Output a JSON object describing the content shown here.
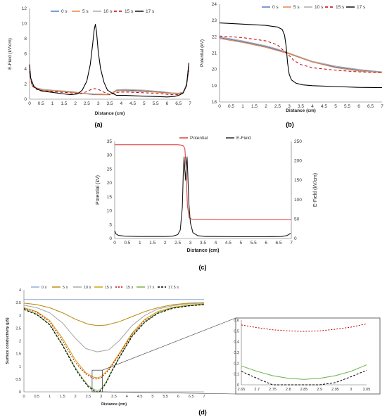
{
  "panels": {
    "a": "(a)",
    "b": "(b)",
    "c": "(c)",
    "d": "(d)"
  },
  "chart_data": [
    {
      "id": "a",
      "type": "line",
      "xlabel": "Distance (cm)",
      "ylabel": "E-Field (kV/cm)",
      "xlim": [
        0,
        7
      ],
      "ylim": [
        0,
        12
      ],
      "xticks": [
        "0",
        "0.5",
        "1",
        "1.5",
        "2",
        "2.5",
        "3",
        "3.5",
        "4",
        "4.5",
        "5",
        "5.5",
        "6",
        "6.5",
        "7"
      ],
      "yticks": [
        "0",
        "2",
        "4",
        "6",
        "8",
        "10",
        "12"
      ],
      "legend_position": "top",
      "series": [
        {
          "name": "0 s",
          "color": "#4472C4",
          "dash": "",
          "x": [
            0,
            0.1,
            0.3,
            0.6,
            1,
            1.5,
            1.9,
            2.2,
            2.5,
            2.8,
            3.1,
            3.5,
            3.8,
            4.2,
            4.6,
            5,
            5.4,
            5.8,
            6.2,
            6.5,
            6.7,
            6.85,
            6.95
          ],
          "y": [
            3.6,
            1.9,
            1.4,
            1.2,
            1.1,
            1,
            0.9,
            0.8,
            0.7,
            0.6,
            0.6,
            0.6,
            1.2,
            1.2,
            1.15,
            1.1,
            1.0,
            0.9,
            0.8,
            0.75,
            0.9,
            1.8,
            3.8
          ]
        },
        {
          "name": "5 s",
          "color": "#ED7D31",
          "dash": "",
          "x": [
            0,
            0.1,
            0.3,
            0.6,
            1,
            1.5,
            1.9,
            2.2,
            2.5,
            2.8,
            3.1,
            3.5,
            3.8,
            4.2,
            4.6,
            5,
            5.4,
            5.8,
            6.2,
            6.5,
            6.7,
            6.85,
            6.95
          ],
          "y": [
            3.7,
            1.9,
            1.4,
            1.2,
            1.1,
            1,
            0.9,
            0.8,
            0.7,
            0.65,
            0.6,
            0.6,
            1.1,
            1.1,
            1.05,
            1.0,
            0.95,
            0.85,
            0.75,
            0.7,
            0.85,
            1.9,
            4.2
          ]
        },
        {
          "name": "10 s",
          "color": "#A5A5A5",
          "dash": "",
          "x": [
            0,
            0.1,
            0.3,
            0.6,
            1,
            1.5,
            1.9,
            2.2,
            2.5,
            2.8,
            3.1,
            3.5,
            3.8,
            4.2,
            4.6,
            5,
            5.4,
            5.8,
            6.2,
            6.5,
            6.7,
            6.85,
            6.95
          ],
          "y": [
            3.8,
            2.0,
            1.5,
            1.3,
            1.2,
            1.1,
            1.0,
            0.85,
            0.75,
            0.7,
            0.7,
            0.65,
            1.25,
            1.3,
            1.25,
            1.2,
            1.1,
            1.0,
            0.85,
            0.8,
            0.95,
            2.0,
            4.6
          ]
        },
        {
          "name": "15 s",
          "color": "#C00000",
          "dash": "4,3",
          "x": [
            0,
            0.1,
            0.3,
            0.6,
            1,
            1.5,
            1.9,
            2.2,
            2.5,
            2.7,
            2.85,
            3.0,
            3.2,
            3.5,
            3.8,
            4.2,
            4.6,
            5,
            5.4,
            5.8,
            6.2,
            6.5,
            6.7,
            6.85,
            6.95
          ],
          "y": [
            3.7,
            1.8,
            1.3,
            1.1,
            1.0,
            0.9,
            0.8,
            0.7,
            1.0,
            1.3,
            1.4,
            1.3,
            1.0,
            0.6,
            0.9,
            0.95,
            0.9,
            0.85,
            0.8,
            0.7,
            0.6,
            0.6,
            0.8,
            1.9,
            4.3
          ]
        },
        {
          "name": "17 s",
          "color": "#000000",
          "dash": "",
          "x": [
            0,
            0.05,
            0.2,
            0.5,
            1,
            1.5,
            1.8,
            2.1,
            2.3,
            2.5,
            2.65,
            2.75,
            2.82,
            2.87,
            2.92,
            3.0,
            3.1,
            3.25,
            3.4,
            3.6,
            3.8,
            4.2,
            4.6,
            5,
            5.5,
            6,
            6.3,
            6.5,
            6.7,
            6.85,
            6.95
          ],
          "y": [
            4.6,
            2.8,
            1.6,
            1.1,
            0.9,
            0.7,
            0.6,
            0.7,
            1.2,
            2.4,
            4.6,
            7.2,
            9.2,
            9.9,
            9.0,
            6.2,
            4.0,
            2.2,
            1.2,
            0.8,
            0.5,
            0.5,
            0.45,
            0.4,
            0.35,
            0.3,
            0.35,
            0.5,
            0.8,
            1.8,
            4.8
          ]
        }
      ]
    },
    {
      "id": "b",
      "type": "line",
      "xlabel": "Distance (cm)",
      "ylabel": "Potential (kV)",
      "xlim": [
        0,
        7
      ],
      "ylim": [
        18,
        24
      ],
      "xticks": [
        "0",
        "0.5",
        "1",
        "1.5",
        "2",
        "2.5",
        "3",
        "3.5",
        "4",
        "4.5",
        "5",
        "5.5",
        "6",
        "6.5",
        "7"
      ],
      "yticks": [
        "18",
        "19",
        "20",
        "21",
        "22",
        "23",
        "24"
      ],
      "legend_position": "top",
      "series": [
        {
          "name": "0 s",
          "color": "#4472C4",
          "dash": "",
          "x": [
            0,
            1,
            2,
            2.5,
            3,
            3.5,
            4,
            5,
            6,
            7
          ],
          "y": [
            21.95,
            21.7,
            21.4,
            21.2,
            21.0,
            20.7,
            20.45,
            20.15,
            19.95,
            19.85
          ]
        },
        {
          "name": "5 s",
          "color": "#ED7D31",
          "dash": "",
          "x": [
            0,
            1,
            2,
            2.5,
            3,
            3.5,
            4,
            5,
            6,
            7
          ],
          "y": [
            21.9,
            21.65,
            21.35,
            21.15,
            20.95,
            20.7,
            20.45,
            20.1,
            19.9,
            19.8
          ]
        },
        {
          "name": "10 s",
          "color": "#A5A5A5",
          "dash": "",
          "x": [
            0,
            1,
            2,
            2.5,
            3,
            3.5,
            4,
            5,
            6,
            7
          ],
          "y": [
            22.0,
            21.75,
            21.45,
            21.25,
            21.0,
            20.75,
            20.5,
            20.2,
            20.0,
            19.85
          ]
        },
        {
          "name": "15 s",
          "color": "#C00000",
          "dash": "4,3",
          "x": [
            0,
            1,
            2,
            2.5,
            2.8,
            3,
            3.2,
            3.5,
            4,
            5,
            6,
            7
          ],
          "y": [
            22.05,
            21.95,
            21.75,
            21.5,
            21.1,
            20.85,
            20.55,
            20.3,
            20.1,
            19.95,
            19.85,
            19.8
          ]
        },
        {
          "name": "17 s",
          "color": "#000000",
          "dash": "",
          "x": [
            0,
            1,
            2,
            2.5,
            2.7,
            2.8,
            2.87,
            2.93,
            3.0,
            3.1,
            3.3,
            3.6,
            4,
            5,
            6,
            7
          ],
          "y": [
            22.85,
            22.78,
            22.7,
            22.6,
            22.45,
            22.1,
            21.4,
            20.4,
            19.7,
            19.35,
            19.15,
            19.05,
            19.0,
            18.95,
            18.9,
            18.88
          ]
        }
      ]
    },
    {
      "id": "c",
      "type": "line",
      "xlabel": "Distance (cm)",
      "ylabel": "Potential (kV)",
      "ylabel2": "E-Field (kV/cm)",
      "xlim": [
        0,
        7
      ],
      "ylim": [
        0,
        35
      ],
      "ylim2": [
        0,
        250
      ],
      "xticks": [
        "0",
        "0.5",
        "1",
        "1.5",
        "2",
        "2.5",
        "3",
        "3.5",
        "4",
        "4.5",
        "5",
        "5.5",
        "6",
        "6.5",
        "7"
      ],
      "yticks": [
        "0",
        "5",
        "10",
        "15",
        "20",
        "25",
        "30",
        "35"
      ],
      "yticks2": [
        "0",
        "50",
        "100",
        "150",
        "200",
        "250"
      ],
      "legend_position": "top",
      "series": [
        {
          "name": "Potential",
          "color": "#E03030",
          "axis": "left",
          "x": [
            0,
            1,
            2,
            2.5,
            2.7,
            2.78,
            2.83,
            2.88,
            2.95,
            3.05,
            3.5,
            4,
            5,
            6,
            7
          ],
          "y": [
            33.8,
            33.8,
            33.8,
            33.8,
            33.6,
            32.5,
            25,
            12,
            7.5,
            7.0,
            6.9,
            6.85,
            6.8,
            6.8,
            6.8
          ]
        },
        {
          "name": "E-Field",
          "color": "#1a1a1a",
          "axis": "right",
          "x": [
            0,
            0.05,
            0.15,
            0.4,
            1,
            1.5,
            2,
            2.3,
            2.5,
            2.6,
            2.68,
            2.72,
            2.75,
            2.78,
            2.81,
            2.84,
            2.87,
            2.9,
            2.94,
            3.0,
            3.1,
            3.3,
            3.6,
            4,
            5,
            6,
            6.6,
            6.8,
            6.9,
            6.97
          ],
          "y": [
            20,
            12,
            8,
            6,
            5,
            5,
            5,
            6,
            10,
            22,
            80,
            170,
            210,
            175,
            150,
            190,
            210,
            160,
            90,
            40,
            15,
            7,
            5,
            5,
            4.5,
            4.5,
            5,
            7,
            10,
            14
          ]
        }
      ]
    },
    {
      "id": "d",
      "type": "line",
      "xlabel": "Distance (cm)",
      "ylabel": "Surface conductivity (µS)",
      "xlim": [
        0,
        7
      ],
      "ylim": [
        0,
        4
      ],
      "xticks": [
        "0",
        "0.5",
        "1",
        "1.5",
        "2",
        "2.5",
        "3",
        "3.5",
        "4",
        "4.5",
        "5",
        "5.5",
        "6",
        "6.5",
        "7"
      ],
      "yticks": [
        "0",
        "0.5",
        "1",
        "1.5",
        "2",
        "2.5",
        "3",
        "3.5",
        "4"
      ],
      "legend_position": "top",
      "series": [
        {
          "name": "0 s",
          "color": "#8EA9DB",
          "dash": "",
          "x": [
            0,
            7
          ],
          "y": [
            3.62,
            3.62
          ]
        },
        {
          "name": "5 s",
          "color": "#B8860B",
          "dash": "",
          "x": [
            0,
            0.5,
            1,
            1.5,
            2,
            2.5,
            2.85,
            3.2,
            3.7,
            4.2,
            4.7,
            5.2,
            5.8,
            6.4,
            7
          ],
          "y": [
            3.48,
            3.42,
            3.3,
            3.1,
            2.85,
            2.65,
            2.6,
            2.62,
            2.75,
            2.95,
            3.15,
            3.3,
            3.42,
            3.48,
            3.5
          ]
        },
        {
          "name": "10 s",
          "color": "#A5A5A5",
          "dash": "",
          "x": [
            0,
            0.5,
            1,
            1.5,
            2,
            2.4,
            2.85,
            3.3,
            3.7,
            4.2,
            4.7,
            5.2,
            5.8,
            6.4,
            7
          ],
          "y": [
            3.4,
            3.3,
            3.1,
            2.7,
            2.1,
            1.7,
            1.57,
            1.65,
            2.0,
            2.6,
            3.0,
            3.25,
            3.38,
            3.45,
            3.48
          ]
        },
        {
          "name": "15 s",
          "color": "#C9A000",
          "dash": "",
          "x": [
            0,
            0.5,
            1,
            1.5,
            2,
            2.4,
            2.7,
            2.85,
            3.0,
            3.3,
            3.7,
            4.2,
            4.7,
            5.2,
            5.8,
            6.4,
            7
          ],
          "y": [
            3.3,
            3.15,
            2.8,
            2.1,
            1.25,
            0.75,
            0.58,
            0.55,
            0.6,
            0.9,
            1.5,
            2.3,
            2.85,
            3.15,
            3.32,
            3.4,
            3.45
          ]
        },
        {
          "name": "15 s",
          "color": "#C00000",
          "dash": "2,2",
          "x": [
            0,
            0.5,
            1,
            1.5,
            2,
            2.4,
            2.7,
            2.85,
            3.0,
            3.3,
            3.7,
            4.2,
            4.7,
            5.2,
            5.8,
            6.4,
            7
          ],
          "y": [
            3.28,
            3.12,
            2.75,
            2.0,
            1.15,
            0.7,
            0.52,
            0.5,
            0.55,
            0.85,
            1.45,
            2.25,
            2.8,
            3.1,
            3.3,
            3.38,
            3.44
          ]
        },
        {
          "name": "17 s",
          "color": "#70AD47",
          "dash": "",
          "x": [
            0,
            0.5,
            1,
            1.5,
            2,
            2.3,
            2.5,
            2.65,
            2.75,
            2.85,
            2.95,
            3.05,
            3.2,
            3.4,
            3.7,
            4.2,
            4.7,
            5.2,
            5.8,
            6.4,
            7
          ],
          "y": [
            3.25,
            3.05,
            2.65,
            1.85,
            0.95,
            0.5,
            0.25,
            0.14,
            0.08,
            0.06,
            0.08,
            0.18,
            0.4,
            0.8,
            1.35,
            2.2,
            2.75,
            3.1,
            3.3,
            3.38,
            3.43
          ]
        },
        {
          "name": "17.5 s",
          "color": "#000000",
          "dash": "3,2",
          "x": [
            0,
            0.5,
            1,
            1.5,
            2,
            2.3,
            2.5,
            2.65,
            2.75,
            2.85,
            2.95,
            3.05,
            3.2,
            3.4,
            3.7,
            4.2,
            4.7,
            5.2,
            5.8,
            6.4,
            7
          ],
          "y": [
            3.23,
            3.03,
            2.63,
            1.82,
            0.9,
            0.45,
            0.2,
            0.1,
            0.02,
            0.0,
            0.02,
            0.13,
            0.36,
            0.77,
            1.32,
            2.17,
            2.73,
            3.08,
            3.28,
            3.37,
            3.42
          ]
        }
      ],
      "inset": {
        "xlim": [
          2.65,
          3.05
        ],
        "ylim": [
          0,
          0.6
        ],
        "xticks": [
          "2.65",
          "2.7",
          "2.75",
          "2.8",
          "2.85",
          "2.9",
          "2.95",
          "3",
          "3.05"
        ],
        "yticks": [
          "0",
          "0.1",
          "0.2",
          "0.3",
          "0.4",
          "0.5",
          "0.6"
        ],
        "series": [
          {
            "name": "15 s",
            "color": "#C00000",
            "dash": "2,2",
            "x": [
              2.65,
              2.7,
              2.75,
              2.8,
              2.85,
              2.9,
              2.95,
              3.0,
              3.05
            ],
            "y": [
              0.555,
              0.53,
              0.51,
              0.5,
              0.495,
              0.5,
              0.515,
              0.535,
              0.565
            ]
          },
          {
            "name": "17 s",
            "color": "#70AD47",
            "dash": "",
            "x": [
              2.65,
              2.7,
              2.75,
              2.8,
              2.85,
              2.9,
              2.95,
              3.0,
              3.05
            ],
            "y": [
              0.175,
              0.125,
              0.085,
              0.06,
              0.05,
              0.06,
              0.085,
              0.125,
              0.185
            ]
          },
          {
            "name": "17.5 s",
            "color": "#000000",
            "dash": "3,2",
            "x": [
              2.65,
              2.7,
              2.75,
              2.8,
              2.85,
              2.9,
              2.95,
              3.0,
              3.05
            ],
            "y": [
              0.125,
              0.06,
              0.0,
              0.0,
              0.0,
              0.0,
              0.02,
              0.075,
              0.135
            ]
          }
        ]
      }
    }
  ]
}
